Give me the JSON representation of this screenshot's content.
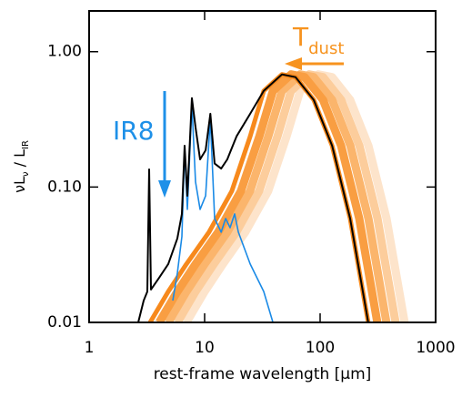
{
  "chart_data": {
    "type": "line",
    "xlabel": "rest-frame wavelength [μm]",
    "ylabel": [
      "νL",
      "ν",
      " / L",
      "IR"
    ],
    "xscale": "log",
    "yscale": "log",
    "xlim": [
      1,
      1000
    ],
    "ylim": [
      0.01,
      2.0
    ],
    "xticks": [
      1,
      10,
      100,
      1000
    ],
    "yticks": [
      0.01,
      {
        "value": 0.1,
        "label": "0.10"
      },
      {
        "value": 1,
        "label": "1.00"
      }
    ],
    "annotations": [
      {
        "text": [
          "IR8"
        ],
        "color": "#1e90e8"
      },
      {
        "text": [
          "T",
          "dust"
        ],
        "color": "#f7931e"
      }
    ],
    "series": [
      {
        "color": "#fde4cb",
        "width": 9,
        "x": [
          6.96,
          10.0,
          14.4,
          22.5,
          35.5,
          51.2,
          67.1,
          96.5,
          127,
          182,
          262,
          376,
          539
        ],
        "values": [
          0.01,
          0.0169,
          0.027,
          0.0464,
          0.0933,
          0.237,
          0.513,
          0.679,
          0.648,
          0.44,
          0.202,
          0.0586,
          0.01
        ]
      },
      {
        "color": "#fccd9c",
        "width": 9,
        "x": [
          5.81,
          8.34,
          12.0,
          18.8,
          29.6,
          42.7,
          56.0,
          80.5,
          106,
          152,
          219,
          314,
          450
        ],
        "values": [
          0.01,
          0.0169,
          0.027,
          0.0464,
          0.0933,
          0.237,
          0.513,
          0.679,
          0.648,
          0.44,
          0.202,
          0.0586,
          0.01
        ]
      },
      {
        "color": "#fbb56c",
        "width": 9,
        "x": [
          4.84,
          6.96,
          10.0,
          15.7,
          24.7,
          35.6,
          46.7,
          67.1,
          88.1,
          127,
          183,
          262,
          375
        ],
        "values": [
          0.01,
          0.0169,
          0.027,
          0.0464,
          0.0933,
          0.237,
          0.513,
          0.679,
          0.648,
          0.44,
          0.202,
          0.0586,
          0.01
        ]
      },
      {
        "color": "#f99e42",
        "width": 9,
        "x": [
          4.04,
          5.81,
          8.35,
          13.1,
          20.6,
          29.8,
          39.0,
          56.0,
          73.5,
          106,
          152,
          218,
          313
        ],
        "values": [
          0.01,
          0.0169,
          0.027,
          0.0464,
          0.0933,
          0.237,
          0.513,
          0.679,
          0.648,
          0.44,
          0.202,
          0.0586,
          0.01
        ]
      },
      {
        "color": "#f7891c",
        "width": 5,
        "x": [
          3.37,
          4.84,
          6.96,
          10.9,
          17.2,
          24.8,
          32.5,
          46.7,
          61.3,
          88.1,
          127,
          182,
          261
        ],
        "values": [
          0.01,
          0.0169,
          0.027,
          0.0464,
          0.0933,
          0.237,
          0.513,
          0.679,
          0.648,
          0.44,
          0.202,
          0.0586,
          0.01
        ]
      },
      {
        "color": "#1a8ae6",
        "width": 1.6,
        "x": [
          5.3,
          5.8,
          6.36,
          6.71,
          7.08,
          7.76,
          8.34,
          9.13,
          10.2,
          11.2,
          12.2,
          13.9,
          15.2,
          16.6,
          18.2,
          19.6,
          24.8,
          32.5,
          39.0
        ],
        "values": [
          0.0145,
          0.0231,
          0.043,
          0.187,
          0.0684,
          0.407,
          0.109,
          0.0684,
          0.0863,
          0.322,
          0.0586,
          0.0464,
          0.0586,
          0.0501,
          0.0633,
          0.0464,
          0.027,
          0.0169,
          0.01
        ]
      },
      {
        "color": "#000000",
        "width": 2,
        "x": [
          2.66,
          2.97,
          3.19,
          3.31,
          3.43,
          4.04,
          4.84,
          5.8,
          6.36,
          6.71,
          7.08,
          7.76,
          8.34,
          9.13,
          10.2,
          11.2,
          12.2,
          13.9,
          15.7,
          18.9,
          24.8,
          32.5,
          46.7,
          61.3,
          88.1,
          127,
          182,
          261
        ],
        "values": [
          0.01,
          0.0145,
          0.0169,
          0.135,
          0.0175,
          0.0214,
          0.027,
          0.0417,
          0.0633,
          0.202,
          0.0863,
          0.454,
          0.276,
          0.16,
          0.187,
          0.348,
          0.149,
          0.137,
          0.16,
          0.237,
          0.348,
          0.513,
          0.679,
          0.648,
          0.44,
          0.202,
          0.0586,
          0.01
        ]
      }
    ]
  }
}
